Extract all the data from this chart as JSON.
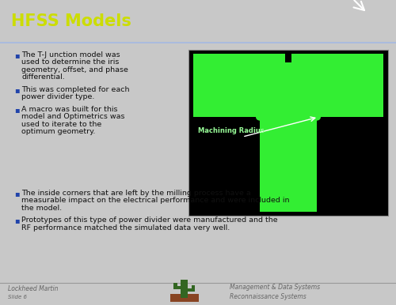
{
  "title": "HFSS Models",
  "title_color": "#CCDD00",
  "header_bg": "#1a3060",
  "body_bg": "#c8c8c8",
  "bullet_color": "#2244aa",
  "text_color": "#111111",
  "bullets_col1": [
    [
      "The T-J unction model was",
      "used to determine the iris",
      "geometry, offset, and phase",
      "differential."
    ],
    [
      "This was completed for each",
      "power divider type."
    ],
    [
      "A macro was built for this",
      "model and Optimetrics was",
      "used to iterate to the",
      "optimum geometry."
    ]
  ],
  "bullets_col2": [
    [
      "The inside corners that are left by the milling process have a",
      "measurable impact on the electrical performance and were included in",
      "the model."
    ],
    [
      "Prototypes of this type of power divider were manufactured and the",
      "RF performance matched the simulated data very well."
    ]
  ],
  "tshape_bg": "#000000",
  "tshape_green": "#33ee33",
  "machining_label": "Machining Radius",
  "machining_color": "#99ff99",
  "footer_left1": "Lockheed Martin",
  "footer_left2": "Slide 6",
  "footer_right1": "Management & Data Systems",
  "footer_right2": "Reconnaissance Systems",
  "logo_green": "#336622",
  "logo_red": "#882211"
}
